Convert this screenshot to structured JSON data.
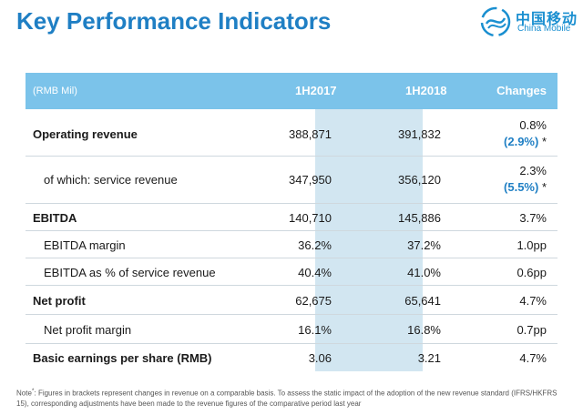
{
  "page": {
    "title": "Key Performance Indicators"
  },
  "logo": {
    "chinese": "中国移动",
    "english": "China Mobile",
    "color": "#1a8fd0"
  },
  "table": {
    "unit_label": "(RMB Mil)",
    "col_1h2017": "1H2017",
    "col_1h2018": "1H2018",
    "col_changes": "Changes",
    "header_color": "#7bc3ea",
    "highlight_color": "#d2e6f1",
    "rows": [
      {
        "label": "Operating revenue",
        "v2017": "388,871",
        "v2018": "391,832",
        "change": "0.8%",
        "comparable": "(2.9%)",
        "star": " *"
      },
      {
        "label": "of which: service revenue",
        "v2017": "347,950",
        "v2018": "356,120",
        "change": "2.3%",
        "comparable": "(5.5%)",
        "star": " *"
      },
      {
        "label": "EBITDA",
        "v2017": "140,710",
        "v2018": "145,886",
        "change": "3.7%"
      },
      {
        "label": "EBITDA margin",
        "v2017": "36.2%",
        "v2018": "37.2%",
        "change": "1.0pp"
      },
      {
        "label": "EBITDA as % of service revenue",
        "v2017": "40.4%",
        "v2018": "41.0%",
        "change": "0.6pp"
      },
      {
        "label": "Net profit",
        "v2017": "62,675",
        "v2018": "65,641",
        "change": "4.7%"
      },
      {
        "label": "Net profit margin",
        "v2017": "16.1%",
        "v2018": "16.8%",
        "change": "0.7pp"
      },
      {
        "label": "Basic earnings per share (RMB)",
        "v2017": "3.06",
        "v2018": "3.21",
        "change": "4.7%"
      }
    ]
  },
  "note": {
    "prefix": "Note",
    "marker": "*",
    "text": ": Figures in brackets represent changes in revenue on a comparable basis. To assess the static impact of the adoption of the new revenue standard (IFRS/HKFRS 15), corresponding adjustments have been made to the revenue figures of the comparative period last year"
  }
}
